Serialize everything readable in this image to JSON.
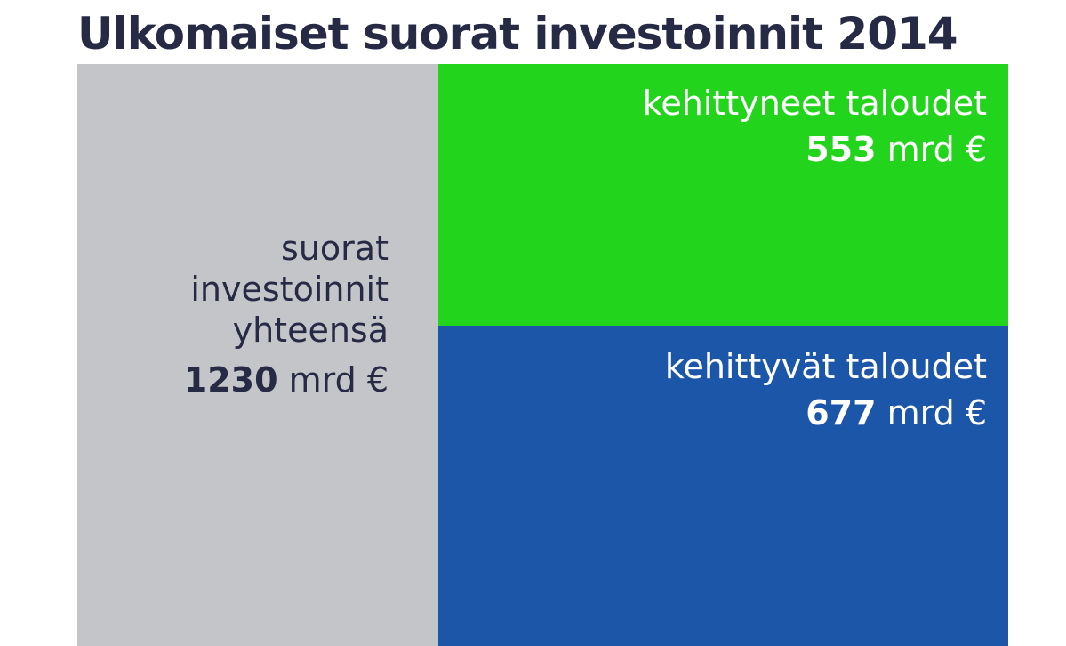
{
  "title": "Ulkomaiset suorat investoinnit 2014",
  "chart_data": {
    "type": "treemap",
    "total": {
      "label_lines": [
        "suorat",
        "investoinnit",
        "yhteensä"
      ],
      "value": 1230,
      "unit": "mrd €",
      "color": "#c4c5c9"
    },
    "segments": [
      {
        "name": "kehittyneet taloudet",
        "value": 553,
        "unit": "mrd €",
        "color": "#22d41b"
      },
      {
        "name": "kehittyvät taloudet",
        "value": 677,
        "unit": "mrd €",
        "color": "#1c56a8"
      }
    ]
  }
}
